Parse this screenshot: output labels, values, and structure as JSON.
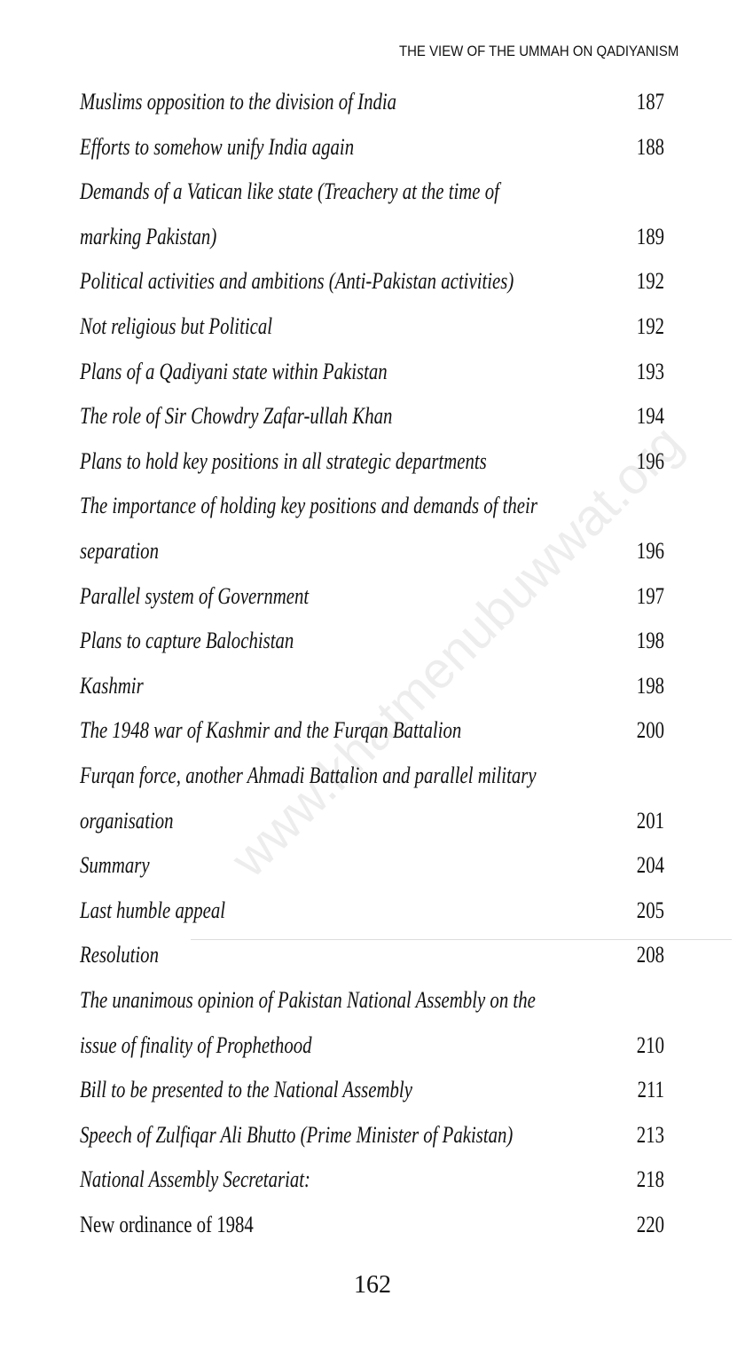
{
  "header": {
    "title": "THE VIEW OF THE UMMAH ON QADIYANISM"
  },
  "watermark": "www.khatmenubuwwat.org",
  "entries": [
    {
      "lines": [
        "Muslims opposition to the division of India"
      ],
      "page": "187"
    },
    {
      "lines": [
        "Efforts to somehow unify India again"
      ],
      "page": "188"
    },
    {
      "lines": [
        "Demands of a Vatican like state (Treachery at the time of",
        "marking Pakistan)"
      ],
      "page": "189"
    },
    {
      "lines": [
        "Political activities and ambitions (Anti-Pakistan activities)"
      ],
      "page": "192"
    },
    {
      "lines": [
        "Not religious but Political"
      ],
      "page": "192"
    },
    {
      "lines": [
        "Plans of a Qadiyani state within Pakistan"
      ],
      "page": "193"
    },
    {
      "lines": [
        "The role of Sir Chowdry Zafar-ullah Khan"
      ],
      "page": "194"
    },
    {
      "lines": [
        "Plans to hold key positions in all strategic departments"
      ],
      "page": "196"
    },
    {
      "lines": [
        "The importance of holding key positions and demands of their",
        "separation"
      ],
      "page": "196"
    },
    {
      "lines": [
        "Parallel system of Government"
      ],
      "page": "197"
    },
    {
      "lines": [
        "Plans to capture Balochistan"
      ],
      "page": "198"
    },
    {
      "lines": [
        "Kashmir"
      ],
      "page": "198"
    },
    {
      "lines": [
        "The 1948 war of Kashmir and the Furqan Battalion"
      ],
      "page": "200"
    },
    {
      "lines": [
        "Furqan force, another Ahmadi Battalion and parallel military",
        "organisation"
      ],
      "page": "201"
    },
    {
      "lines": [
        "Summary"
      ],
      "page": "204"
    },
    {
      "lines": [
        "Last humble appeal"
      ],
      "page": "205"
    },
    {
      "lines": [
        "Resolution"
      ],
      "page": "208"
    },
    {
      "lines": [
        "The unanimous opinion of Pakistan National Assembly on the",
        "issue of finality of Prophethood"
      ],
      "page": "210"
    },
    {
      "lines": [
        "Bill to be presented to the National Assembly"
      ],
      "page": "211"
    },
    {
      "lines": [
        "Speech of Zulfiqar Ali Bhutto (Prime Minister of Pakistan)"
      ],
      "page": "213"
    },
    {
      "lines": [
        "National Assembly Secretariat:"
      ],
      "page": "218"
    },
    {
      "lines": [
        "New ordinance of 1984"
      ],
      "page": "220",
      "style": "normal"
    }
  ],
  "footer": {
    "page_number": "162"
  }
}
